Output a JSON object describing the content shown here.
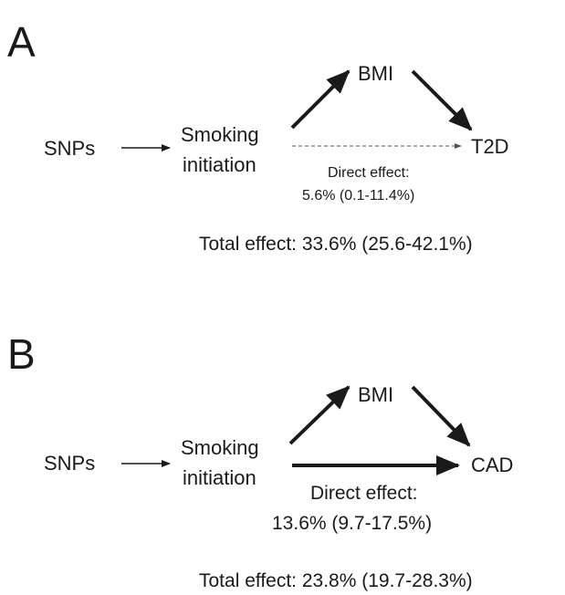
{
  "panels": [
    {
      "letter": "A",
      "exposure_snps": "SNPs",
      "smoking_line1": "Smoking",
      "smoking_line2": "initiation",
      "mediator": "BMI",
      "outcome": "T2D",
      "direct_label": "Direct effect:",
      "direct_value": "5.6% (0.1-11.4%)",
      "total_effect": "Total effect: 33.6% (25.6-42.1%)"
    },
    {
      "letter": "B",
      "exposure_snps": "SNPs",
      "smoking_line1": "Smoking",
      "smoking_line2": "initiation",
      "mediator": "BMI",
      "outcome": "CAD",
      "direct_label": "Direct effect:",
      "direct_value": "13.6% (9.7-17.5%)",
      "total_effect": "Total effect: 23.8% (19.7-28.3%)"
    }
  ],
  "colors": {
    "ink": "#1a1a1a",
    "dashed": "#555555"
  }
}
